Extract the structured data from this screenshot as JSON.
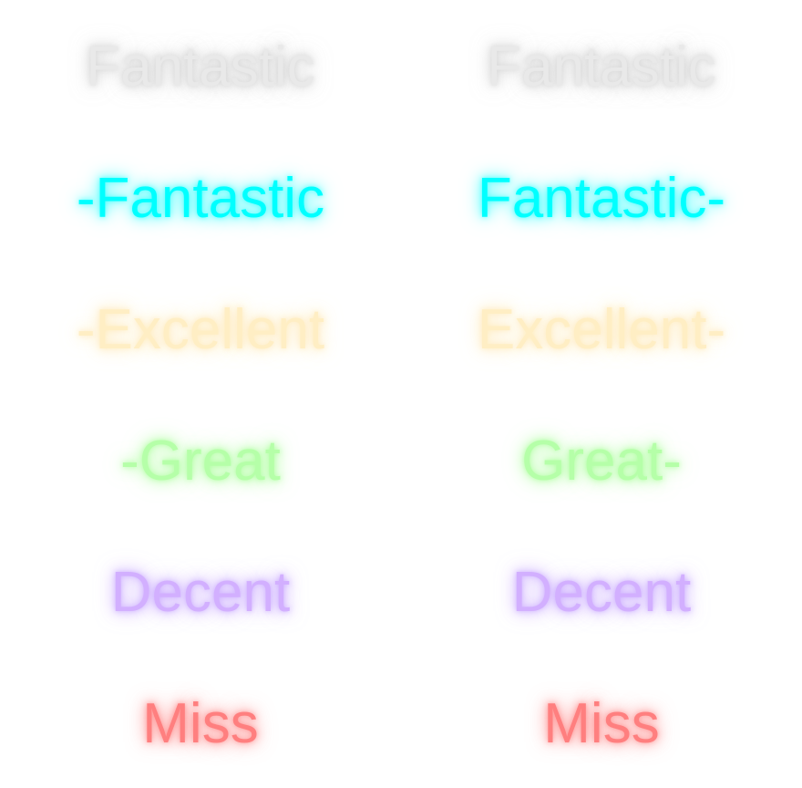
{
  "judgments": {
    "left": [
      {
        "label": "Fantastic",
        "color": "#e9e9e9",
        "glow": "rgba(200,200,200,0.6)"
      },
      {
        "label": "-Fantastic",
        "color": "#00ffff",
        "glow": "rgba(0,255,255,0.55)"
      },
      {
        "label": "-Excellent",
        "color": "#ffeec4",
        "glow": "rgba(255,230,170,0.6)"
      },
      {
        "label": "-Great",
        "color": "#b5ffa8",
        "glow": "rgba(150,255,130,0.6)"
      },
      {
        "label": "Decent",
        "color": "#d2afff",
        "glow": "rgba(190,150,255,0.6)"
      },
      {
        "label": "Miss",
        "color": "#ff7f7f",
        "glow": "rgba(255,110,110,0.55)"
      }
    ],
    "right": [
      {
        "label": "Fantastic",
        "color": "#e9e9e9",
        "glow": "rgba(200,200,200,0.6)"
      },
      {
        "label": "Fantastic-",
        "color": "#00ffff",
        "glow": "rgba(0,255,255,0.55)"
      },
      {
        "label": "Excellent-",
        "color": "#ffeec4",
        "glow": "rgba(255,230,170,0.6)"
      },
      {
        "label": "Great-",
        "color": "#b5ffa8",
        "glow": "rgba(150,255,130,0.6)"
      },
      {
        "label": "Decent",
        "color": "#d2afff",
        "glow": "rgba(190,150,255,0.6)"
      },
      {
        "label": "Miss",
        "color": "#ff7f7f",
        "glow": "rgba(255,110,110,0.55)"
      }
    ]
  }
}
